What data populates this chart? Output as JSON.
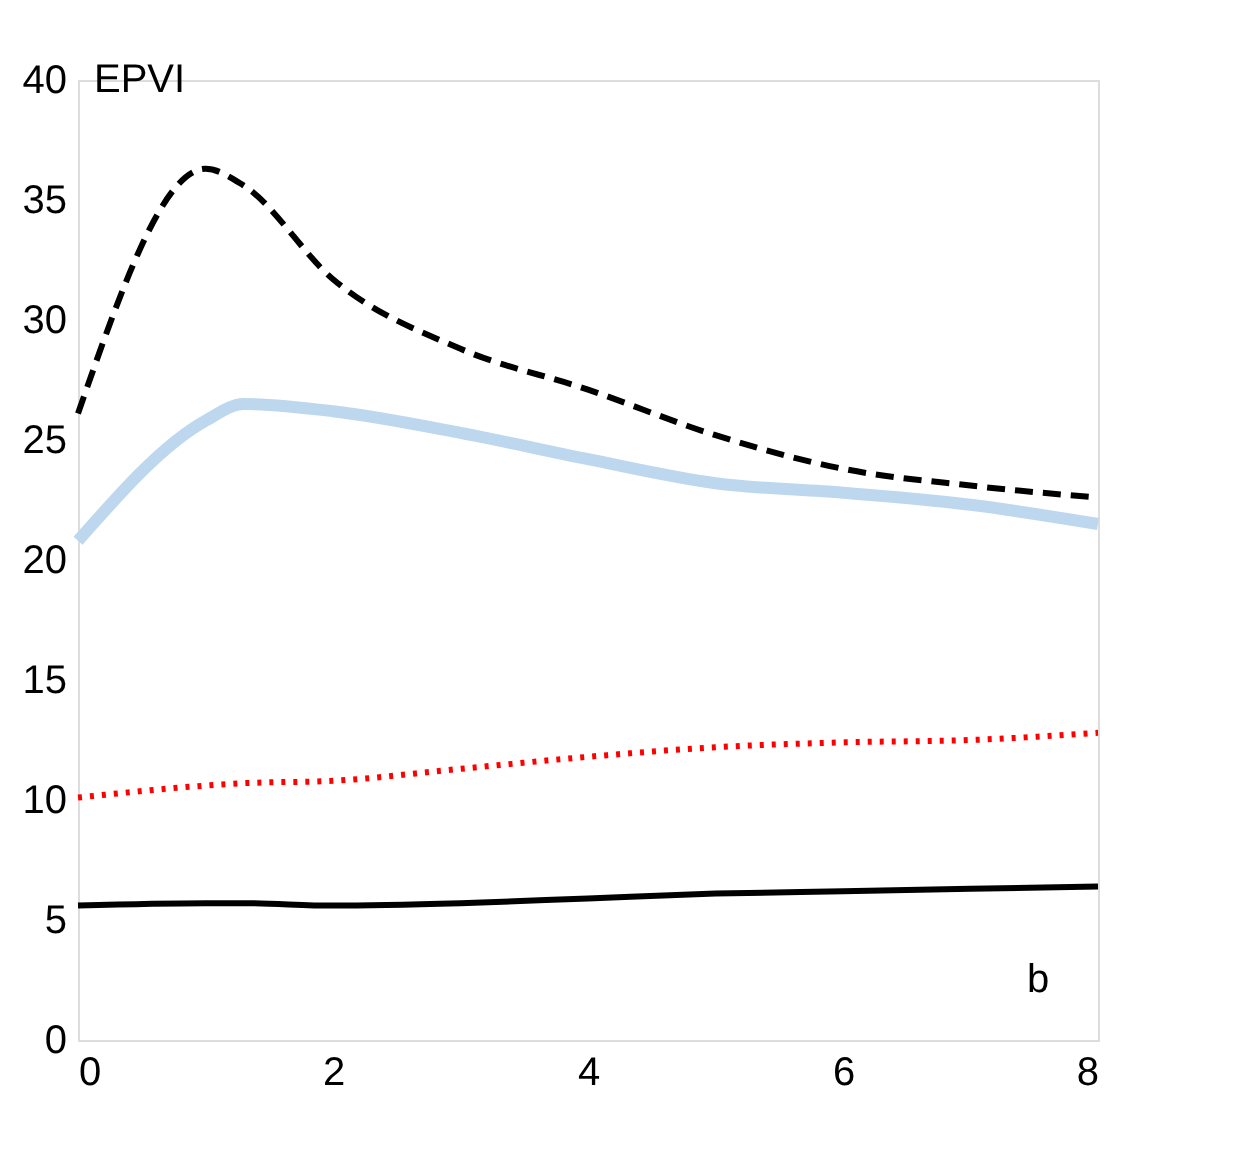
{
  "chart_data": {
    "type": "line",
    "ylabel": "EPVI",
    "annotations": [
      "b"
    ],
    "x": [
      0,
      1,
      1.3,
      2,
      3,
      4,
      5,
      6,
      7,
      8
    ],
    "series": [
      {
        "color": "#000000",
        "line_style": "dashed",
        "values": [
          26.1,
          36.3,
          35.6,
          31.7,
          28.8,
          27.1,
          25.2,
          23.8,
          23.1,
          22.6
        ]
      },
      {
        "color": "#bdd7ee",
        "line_style": "solid",
        "values": [
          20.8,
          25.8,
          26.5,
          26.2,
          25.3,
          24.2,
          23.2,
          22.8,
          22.3,
          21.5
        ]
      },
      {
        "color": "#ff0000",
        "line_style": "dotted",
        "values": [
          10.1,
          10.6,
          10.7,
          10.8,
          11.3,
          11.8,
          12.2,
          12.4,
          12.5,
          12.8
        ]
      },
      {
        "color": "#000000",
        "line_style": "solid",
        "values": [
          5.6,
          5.7,
          5.7,
          5.6,
          5.7,
          5.9,
          6.1,
          6.2,
          6.3,
          6.4
        ]
      }
    ],
    "xlim": [
      0,
      8
    ],
    "xticks": [
      0,
      2,
      4,
      6,
      8
    ],
    "ylim": [
      0,
      40
    ],
    "yticks": [
      0,
      5,
      10,
      15,
      20,
      25,
      30,
      35,
      40
    ],
    "grid": false,
    "marker": "none"
  }
}
